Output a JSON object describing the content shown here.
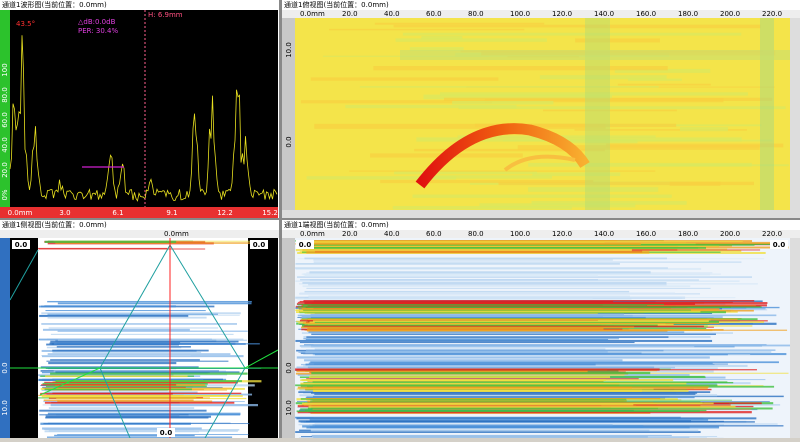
{
  "waveform": {
    "title": "通道1波形图(当前位置：0.0mm)",
    "angle": "43.5°",
    "db": "△dB:0.0dB",
    "per": "PER: 30.4%",
    "h": "H: 6.9mm",
    "x_ticks": [
      "0.0mm",
      "3.0",
      "6.1",
      "9.1",
      "12.2",
      "15.2"
    ],
    "y_ticks": [
      "100",
      "80.0",
      "60.0",
      "40.0",
      "20.0",
      "0%"
    ]
  },
  "top_view": {
    "title": "通道1俯视图(当前位置：0.0mm)",
    "x_ticks": [
      "0.0mm",
      "20.0",
      "40.0",
      "60.0",
      "80.0",
      "100.0",
      "120.0",
      "140.0",
      "160.0",
      "180.0",
      "200.0",
      "220.0"
    ],
    "y_ticks": [
      "10.0",
      "0.0"
    ]
  },
  "side_view": {
    "title": "通道1侧视图(当前位置：0.0mm)",
    "top_label": "0.0mm",
    "corner_labels": [
      "0.0",
      "0.0",
      "0.0"
    ],
    "y_ticks": [
      "0.0",
      "10.0"
    ]
  },
  "end_view": {
    "title": "通道1端视图(当前位置：0.0mm)",
    "x_ticks": [
      "0.0mm",
      "20.0",
      "40.0",
      "60.0",
      "80.0",
      "100.0",
      "120.0",
      "140.0",
      "160.0",
      "180.0",
      "200.0",
      "220.0"
    ],
    "corner_labels": [
      "0.0",
      "0.0"
    ],
    "y_ticks": [
      "0.0",
      "10.0"
    ]
  }
}
